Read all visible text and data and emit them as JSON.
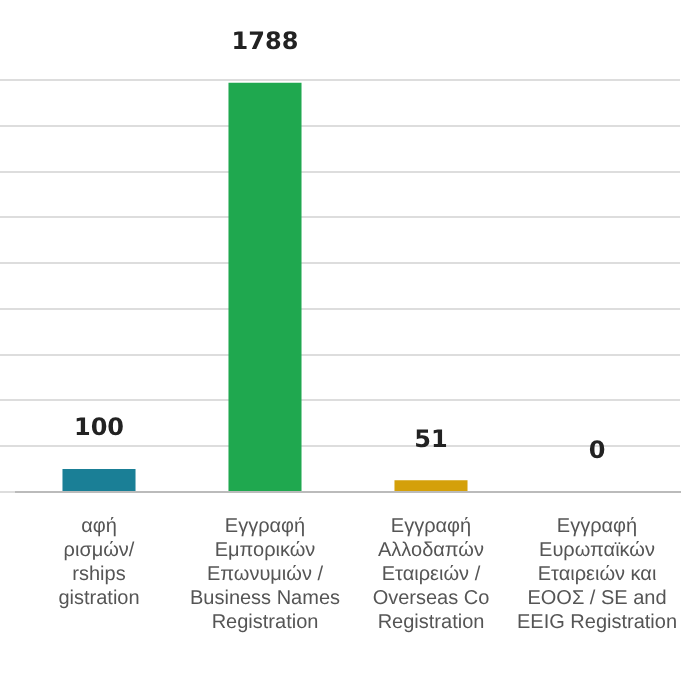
{
  "chart_data": {
    "type": "bar",
    "categories": [
      "αφή\nρισμών/\nrships\ngistration",
      "Εγγραφή\nΕμπορικών\nΕπωνυμιών /\nBusiness Names\nRegistration",
      "Εγγραφή\nΑλλοδαπών\nΕταιρειών /\nOverseas Co\nRegistration",
      "Εγγραφή\nΕυρωπαϊκών\nΕταιρειών και\nΕΟΟΣ / SE and\nEEIG Registration"
    ],
    "values": [
      100,
      1788,
      51,
      0
    ],
    "colors": [
      "#1a7f96",
      "#1fa84f",
      "#d4a00a",
      "#5b2a8c"
    ],
    "data_labels": true,
    "grid": "y",
    "legend": false
  }
}
